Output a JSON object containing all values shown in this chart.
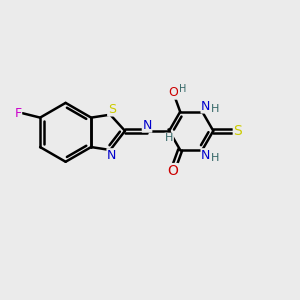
{
  "bg_color": "#ebebeb",
  "bond_color": "#000000",
  "bond_width": 1.8,
  "atom_colors": {
    "C": "#000000",
    "N": "#0000cc",
    "O": "#cc0000",
    "S": "#cccc00",
    "F": "#cc00cc",
    "H": "#336666"
  },
  "font_size": 8,
  "fig_size": [
    3.0,
    3.0
  ],
  "dpi": 100
}
